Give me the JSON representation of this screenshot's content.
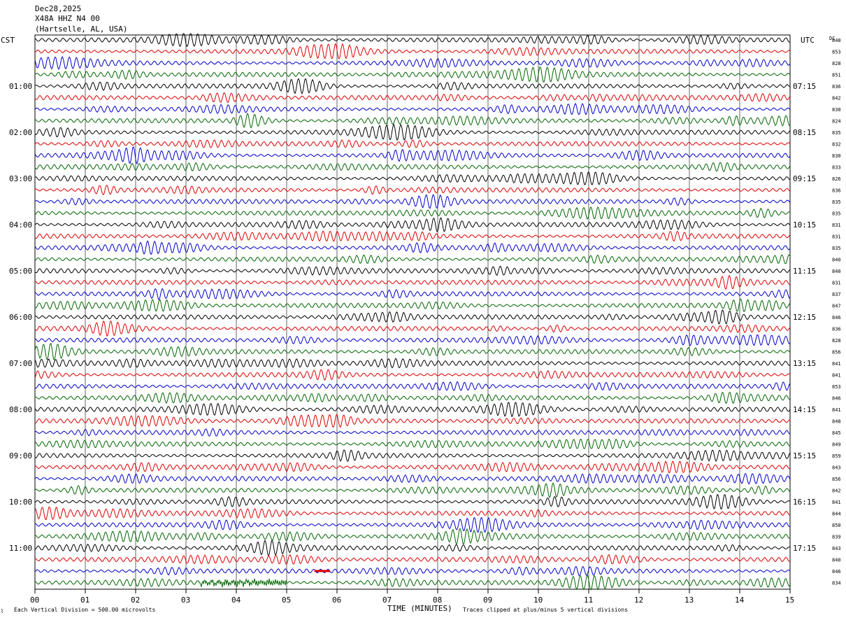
{
  "header": {
    "date": "Dec28,2025",
    "station": "X48A HHZ N4 00",
    "location": "(Hartselle, AL, USA)"
  },
  "left_tz": "CST",
  "right_tz": "UTC",
  "dc_header": "DC",
  "footer": {
    "left": "Each Vertical Division =  500.00 microvolts",
    "right": "Traces clipped at plus/minus 5 vertical divisions",
    "x_title": "TIME (MINUTES)"
  },
  "chart_data": {
    "type": "line",
    "title": "",
    "xlabel": "TIME (MINUTES)",
    "ylabel": "",
    "xlim": [
      0,
      15
    ],
    "x_ticks": [
      "00",
      "01",
      "02",
      "03",
      "04",
      "05",
      "06",
      "07",
      "08",
      "09",
      "10",
      "11",
      "12",
      "13",
      "14",
      "15"
    ],
    "row_minutes": 15,
    "trace_colors": [
      "#000000",
      "#dd0000",
      "#0000cc",
      "#006600"
    ],
    "rows": 48,
    "left_hour_labels": [
      {
        "row": 4,
        "text": "01:00"
      },
      {
        "row": 8,
        "text": "02:00"
      },
      {
        "row": 12,
        "text": "03:00"
      },
      {
        "row": 16,
        "text": "04:00"
      },
      {
        "row": 20,
        "text": "05:00"
      },
      {
        "row": 24,
        "text": "06:00"
      },
      {
        "row": 28,
        "text": "07:00"
      },
      {
        "row": 32,
        "text": "08:00"
      },
      {
        "row": 36,
        "text": "09:00"
      },
      {
        "row": 40,
        "text": "10:00"
      },
      {
        "row": 44,
        "text": "11:00"
      }
    ],
    "right_hour_labels": [
      {
        "row": 4,
        "text": "07:15"
      },
      {
        "row": 8,
        "text": "08:15"
      },
      {
        "row": 12,
        "text": "09:15"
      },
      {
        "row": 16,
        "text": "10:15"
      },
      {
        "row": 20,
        "text": "11:15"
      },
      {
        "row": 24,
        "text": "12:15"
      },
      {
        "row": 28,
        "text": "13:15"
      },
      {
        "row": 32,
        "text": "14:15"
      },
      {
        "row": 36,
        "text": "15:15"
      },
      {
        "row": 40,
        "text": "16:15"
      },
      {
        "row": 44,
        "text": "17:15"
      }
    ],
    "dc_values": [
      "848",
      "853",
      "828",
      "851",
      "836",
      "842",
      "830",
      "824",
      "835",
      "832",
      "830",
      "833",
      "826",
      "836",
      "835",
      "835",
      "831",
      "831",
      "835",
      "840",
      "840",
      "831",
      "837",
      "847",
      "846",
      "836",
      "828",
      "856",
      "841",
      "841",
      "853",
      "846",
      "841",
      "848",
      "845",
      "849",
      "859",
      "843",
      "856",
      "842",
      "841",
      "844",
      "850",
      "839",
      "843",
      "840",
      "846",
      "834"
    ],
    "annotations": [
      {
        "row": 46,
        "x_min": 5.55,
        "text": "",
        "kind": "short red burst"
      },
      {
        "row": 47,
        "x_min": 3.3,
        "x_max": 5.0,
        "kind": "green burst"
      }
    ]
  }
}
